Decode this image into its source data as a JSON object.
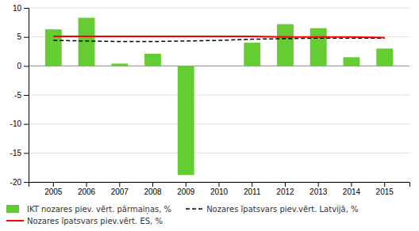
{
  "chart_data": {
    "type": "bar",
    "categories": [
      "2005",
      "2006",
      "2007",
      "2008",
      "2009",
      "2010",
      "2011",
      "2012",
      "2013",
      "2014",
      "2015"
    ],
    "series": [
      {
        "name": "IKT nozares piev. vērt. pārmaiņas, %",
        "type": "bar",
        "color": "#66cc33",
        "values": [
          6.3,
          8.3,
          0.4,
          2.1,
          -18.8,
          0.0,
          4.0,
          7.2,
          6.5,
          1.5,
          3.0
        ]
      },
      {
        "name": "Nozares īpatsvars piev.vērt. Latvijā, %",
        "type": "line",
        "color": "#000000",
        "line_style": "dashed",
        "values": [
          4.4,
          4.3,
          4.2,
          4.2,
          4.3,
          4.4,
          4.6,
          4.7,
          4.8,
          4.8,
          4.8
        ]
      },
      {
        "name": "Nozares īpatsvars piev.vērt. ES, %",
        "type": "line",
        "color": "#ff0000",
        "line_style": "solid",
        "values": [
          5.1,
          5.1,
          5.1,
          5.1,
          5.1,
          5.1,
          5.1,
          5.0,
          5.0,
          5.0,
          4.9
        ]
      }
    ],
    "ylim": [
      -20,
      10
    ],
    "yticks": [
      -20,
      -15,
      -10,
      -5,
      0,
      5,
      10
    ],
    "grid": true,
    "legend": "bottom"
  }
}
